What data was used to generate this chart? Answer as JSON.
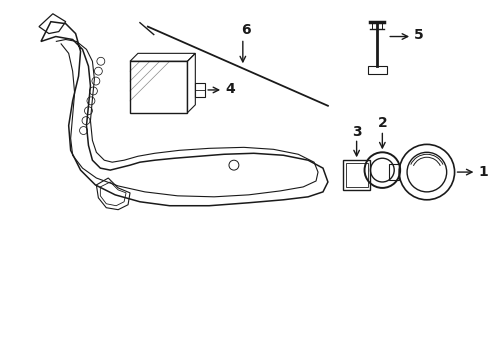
{
  "bg_color": "#ffffff",
  "line_color": "#1a1a1a",
  "line_width": 1.0,
  "fig_width": 4.9,
  "fig_height": 3.6,
  "dpi": 100
}
